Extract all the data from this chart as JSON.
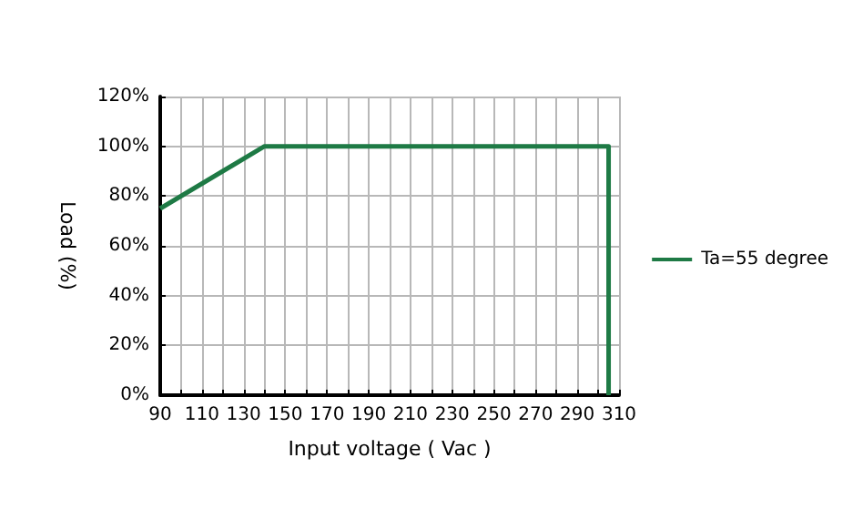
{
  "chart_data": {
    "type": "line",
    "xlabel": "Input voltage ( Vac )",
    "ylabel": "Load (%)",
    "x": [
      90,
      140,
      305,
      305
    ],
    "series": [
      {
        "name": "Ta=55 degree",
        "color": "#1e7a45",
        "values": [
          75,
          100,
          100,
          0
        ]
      }
    ],
    "xlim": [
      90,
      310
    ],
    "xticks": [
      90,
      {
        "value": 100,
        "label": null
      },
      110,
      {
        "value": 120,
        "label": null
      },
      130,
      {
        "value": 140,
        "label": null
      },
      150,
      {
        "value": 160,
        "label": null
      },
      170,
      {
        "value": 180,
        "label": null
      },
      190,
      {
        "value": 200,
        "label": null
      },
      210,
      {
        "value": 220,
        "label": null
      },
      230,
      {
        "value": 240,
        "label": null
      },
      250,
      {
        "value": 260,
        "label": null
      },
      270,
      {
        "value": 280,
        "label": null
      },
      290,
      {
        "value": 300,
        "label": null
      },
      310
    ],
    "ylim": [
      0,
      120
    ],
    "yticks": [
      {
        "value": 0,
        "label": "0%"
      },
      {
        "value": 20,
        "label": "20%"
      },
      {
        "value": 40,
        "label": "40%"
      },
      {
        "value": 60,
        "label": "60%"
      },
      {
        "value": 80,
        "label": "80%"
      },
      {
        "value": 100,
        "label": "100%"
      },
      {
        "value": 120,
        "label": "120%"
      }
    ],
    "grid": true,
    "legend": "right",
    "marker": "none",
    "line_style": "solid"
  }
}
